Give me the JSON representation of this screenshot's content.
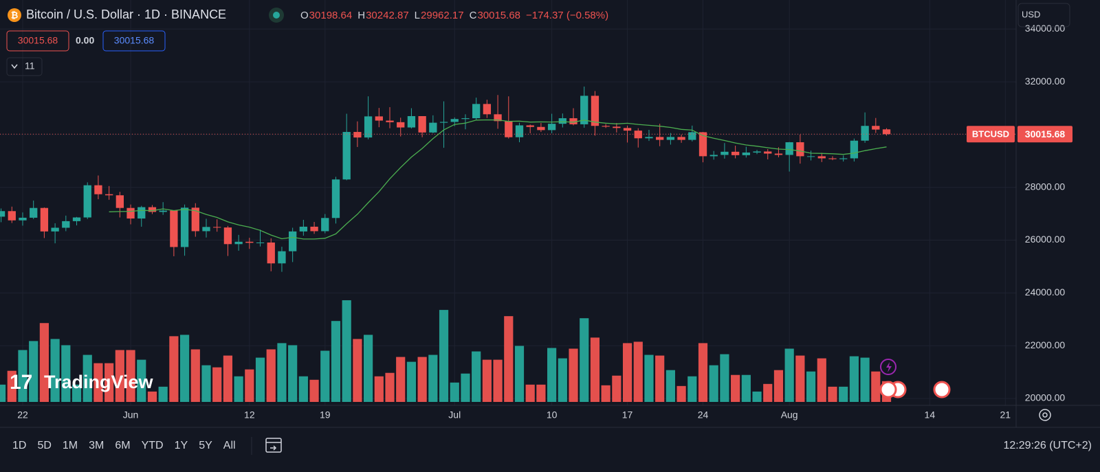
{
  "header": {
    "symbol": "Bitcoin / U.S. Dollar · 1D · BINANCE",
    "ohlc_labels": [
      "O",
      "H",
      "L",
      "C"
    ],
    "change": "−174.37 (−0.58%)",
    "spread": "0.00"
  },
  "currency": "USD",
  "logo": "TradingView",
  "price_tag": "BTCUSD",
  "ranges": [
    "1D",
    "5D",
    "1M",
    "3M",
    "6M",
    "YTD",
    "1Y",
    "5Y",
    "All"
  ],
  "clock": "12:29:26 (UTC+2)",
  "chart_data": {
    "type": "candlestick",
    "open": [
      26890,
      27100,
      26750,
      26850,
      27220,
      26330,
      26470,
      26720,
      26860,
      28080,
      27740,
      27700,
      27220,
      26820,
      27250,
      27070,
      27120,
      25740,
      27230,
      26340,
      26500,
      26480,
      25850,
      25940,
      25900,
      25910,
      25120,
      25580,
      26330,
      26510,
      26340,
      26840,
      28300,
      30100,
      29890,
      30690,
      30530,
      30470,
      30270,
      30700,
      30080,
      30450,
      30480,
      30590,
      30620,
      31160,
      30770,
      30510,
      29900,
      30350,
      30290,
      30170,
      30410,
      30620,
      30390,
      31470,
      30330,
      30300,
      30250,
      30150,
      29860,
      29910,
      29800,
      29910,
      29800,
      30090,
      29180,
      29230,
      29350,
      29220,
      29320,
      29360,
      29280,
      29230,
      29710,
      29180,
      29180,
      29100,
      29070,
      29100,
      29770,
      30330,
      30198.64
    ],
    "high": [
      27200,
      27270,
      27050,
      27500,
      27240,
      26640,
      26930,
      26880,
      28190,
      28450,
      28050,
      27830,
      27350,
      27300,
      27330,
      27440,
      27130,
      27350,
      27400,
      26810,
      26790,
      26540,
      26200,
      26090,
      26400,
      26070,
      25750,
      26470,
      26770,
      26690,
      26990,
      28400,
      30790,
      30500,
      31450,
      31010,
      31040,
      30640,
      31000,
      30700,
      30730,
      31260,
      30650,
      30770,
      31400,
      31320,
      31500,
      31450,
      30450,
      30380,
      30440,
      30790,
      30800,
      31000,
      31820,
      31650,
      30400,
      30440,
      30340,
      30240,
      30180,
      30410,
      30060,
      30000,
      30340,
      30100,
      29380,
      29680,
      29580,
      29540,
      29420,
      29450,
      29520,
      29720,
      30000,
      29390,
      29310,
      29180,
      29210,
      29850,
      30840,
      30630,
      30242.87
    ],
    "low": [
      26680,
      26650,
      26550,
      26800,
      26080,
      25880,
      26340,
      26560,
      26800,
      27550,
      27530,
      26860,
      26600,
      26510,
      26990,
      26960,
      25390,
      25410,
      26130,
      26100,
      26320,
      25400,
      25600,
      25670,
      25760,
      24820,
      24800,
      25170,
      26170,
      26240,
      26260,
      26630,
      28270,
      29530,
      29820,
      30280,
      30240,
      29930,
      30230,
      29900,
      30050,
      29500,
      30320,
      30200,
      30570,
      30630,
      30220,
      29850,
      29710,
      30050,
      30100,
      30050,
      30270,
      30350,
      30260,
      29960,
      30250,
      30080,
      29700,
      29510,
      29760,
      29560,
      29620,
      29690,
      29740,
      28950,
      29050,
      29090,
      29100,
      29130,
      29260,
      29060,
      29140,
      28600,
      28900,
      29020,
      28960,
      29030,
      28980,
      28980,
      29690,
      30060,
      29962.17
    ],
    "close": [
      27100,
      26750,
      26850,
      27220,
      26330,
      26470,
      26720,
      26860,
      28080,
      27740,
      27700,
      27220,
      26820,
      27250,
      27070,
      27120,
      25740,
      27230,
      26340,
      26500,
      26480,
      25850,
      25940,
      25900,
      25910,
      25120,
      25580,
      26330,
      26510,
      26340,
      26840,
      28300,
      30100,
      29890,
      30690,
      30530,
      30470,
      30270,
      30700,
      30080,
      30450,
      30480,
      30590,
      30620,
      31160,
      30770,
      30510,
      29900,
      30350,
      30290,
      30170,
      30410,
      30620,
      30390,
      31470,
      30330,
      30300,
      30250,
      30150,
      29860,
      29910,
      29800,
      29910,
      29800,
      30090,
      29180,
      29230,
      29350,
      29220,
      29320,
      29360,
      29280,
      29230,
      29710,
      29180,
      29180,
      29100,
      29070,
      29100,
      29770,
      30330,
      30190.05,
      30015.68
    ],
    "volume": [
      25,
      45,
      75,
      88,
      114,
      91,
      82,
      25,
      68,
      56,
      56,
      75,
      75,
      61,
      15,
      22,
      95,
      97,
      76,
      53,
      50,
      67,
      37,
      47,
      64,
      76,
      85,
      82,
      37,
      32,
      74,
      117,
      147,
      91,
      97,
      37,
      42,
      65,
      58,
      65,
      68,
      133,
      28,
      41,
      73,
      61,
      61,
      124,
      81,
      25,
      25,
      78,
      63,
      77,
      121,
      93,
      24,
      38,
      85,
      87,
      68,
      67,
      46,
      23,
      37,
      85,
      53,
      69,
      39,
      39,
      15,
      26,
      46,
      77,
      67,
      44,
      63,
      22,
      22,
      66,
      64,
      44,
      30
    ],
    "ma_period": 11,
    "ma_color": "#4caf50",
    "up_color": "#26a69a",
    "down_color": "#ef5350",
    "xlim": [
      -0.1,
      94
    ],
    "ylim": [
      19740,
      35100
    ],
    "xticks": [
      {
        "value": 2,
        "label": "22"
      },
      {
        "value": 12,
        "label": "Jun"
      },
      {
        "value": 23,
        "label": "12"
      },
      {
        "value": 30,
        "label": "19"
      },
      {
        "value": 42,
        "label": "Jul"
      },
      {
        "value": 51,
        "label": "10"
      },
      {
        "value": 58,
        "label": "17"
      },
      {
        "value": 65,
        "label": "24"
      },
      {
        "value": 73,
        "label": "Aug"
      },
      {
        "value": 86,
        "label": "14"
      },
      {
        "value": 93,
        "label": "21"
      }
    ],
    "yticks": [
      {
        "value": 20000,
        "label": "20000.00"
      },
      {
        "value": 22000,
        "label": "22000.00"
      },
      {
        "value": 24000,
        "label": "24000.00"
      },
      {
        "value": 26000,
        "label": "26000.00"
      },
      {
        "value": 28000,
        "label": "28000.00"
      },
      {
        "value": 30000,
        "label": "30000.00"
      },
      {
        "value": 32000,
        "label": "32000.00"
      },
      {
        "value": 34000,
        "label": "34000.00"
      }
    ],
    "grid": true
  }
}
